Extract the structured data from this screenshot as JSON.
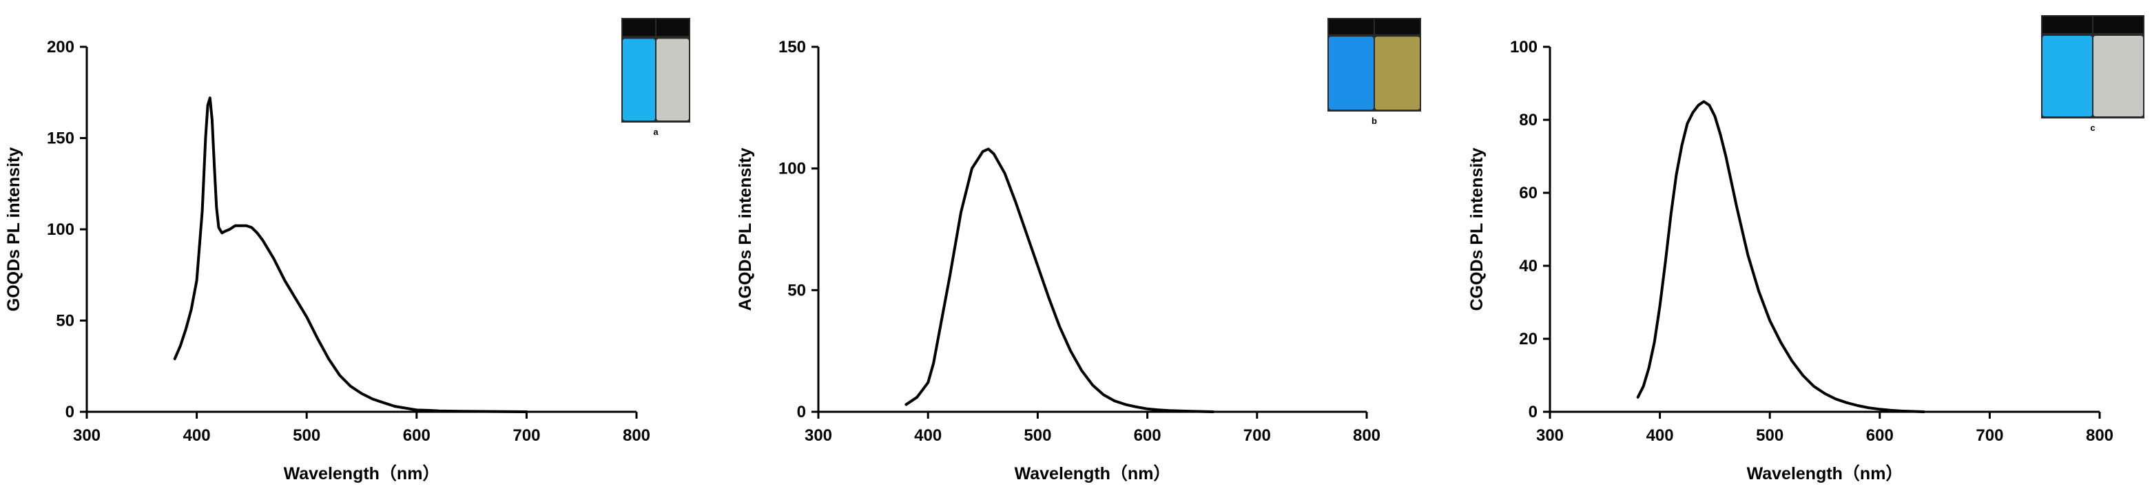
{
  "panels": [
    {
      "id": "a",
      "chart_data": {
        "type": "line",
        "xlabel": "Wavelength（nm）",
        "ylabel": "GOQDs PL intensity",
        "xlim": [
          300,
          800
        ],
        "ylim": [
          0,
          200
        ],
        "xticks": [
          300,
          400,
          500,
          600,
          700,
          800
        ],
        "yticks": [
          0,
          50,
          100,
          150,
          200
        ],
        "series": [
          {
            "x": [
              380,
              385,
              390,
              395,
              400,
              405,
              408,
              410,
              412,
              414,
              416,
              418,
              420,
              423,
              426,
              430,
              435,
              440,
              445,
              450,
              455,
              460,
              470,
              480,
              490,
              500,
              510,
              520,
              530,
              540,
              550,
              560,
              570,
              580,
              590,
              600,
              610,
              620,
              640,
              660,
              680,
              700
            ],
            "y": [
              29,
              36,
              45,
              56,
              72,
              110,
              150,
              168,
              172,
              160,
              135,
              112,
              101,
              98,
              99,
              100,
              102,
              102,
              102,
              101,
              98,
              94,
              84,
              72,
              62,
              52,
              40,
              29,
              20,
              14,
              10,
              7,
              5,
              3,
              2,
              1,
              0.8,
              0.5,
              0.3,
              0.2,
              0.1,
              0
            ]
          }
        ]
      },
      "inset": {
        "caption": "a",
        "vial_colors": [
          "#1fb0f0",
          "#c9c9c4"
        ]
      }
    },
    {
      "id": "b",
      "chart_data": {
        "type": "line",
        "xlabel": "Wavelength（nm）",
        "ylabel": "AGQDs PL intensity",
        "xlim": [
          300,
          800
        ],
        "ylim": [
          0,
          150
        ],
        "xticks": [
          300,
          400,
          500,
          600,
          700,
          800
        ],
        "yticks": [
          0,
          50,
          100,
          150
        ],
        "series": [
          {
            "x": [
              380,
              390,
              400,
              405,
              410,
              420,
              430,
              440,
              450,
              455,
              460,
              470,
              480,
              490,
              500,
              510,
              520,
              530,
              540,
              550,
              560,
              570,
              580,
              590,
              600,
              610,
              620,
              640,
              660
            ],
            "y": [
              3,
              6,
              12,
              20,
              32,
              56,
              82,
              100,
              107,
              108,
              106,
              98,
              86,
              73,
              60,
              47,
              35,
              25,
              17,
              11,
              7,
              4.5,
              3,
              2,
              1.2,
              0.8,
              0.5,
              0.2,
              0
            ]
          }
        ]
      },
      "inset": {
        "caption": "b",
        "vial_colors": [
          "#1c8fe8",
          "#a89a4a"
        ]
      }
    },
    {
      "id": "c",
      "chart_data": {
        "type": "line",
        "xlabel": "Wavelength（nm）",
        "ylabel": "CGQDs PL intensity",
        "xlim": [
          300,
          800
        ],
        "ylim": [
          0,
          100
        ],
        "xticks": [
          300,
          400,
          500,
          600,
          700,
          800
        ],
        "yticks": [
          0,
          20,
          40,
          60,
          80,
          100
        ],
        "series": [
          {
            "x": [
              380,
              385,
              390,
              395,
              400,
              405,
              410,
              415,
              420,
              425,
              430,
              435,
              440,
              445,
              450,
              455,
              460,
              470,
              480,
              490,
              500,
              510,
              520,
              530,
              540,
              550,
              560,
              570,
              580,
              590,
              600,
              610,
              620,
              640
            ],
            "y": [
              4,
              7,
              12,
              19,
              29,
              41,
              54,
              65,
              73,
              79,
              82,
              84,
              85,
              84,
              81,
              76,
              70,
              56,
              43,
              33,
              25,
              19,
              14,
              10,
              7,
              5,
              3.5,
              2.5,
              1.7,
              1.1,
              0.7,
              0.4,
              0.2,
              0
            ]
          }
        ]
      },
      "inset": {
        "caption": "c",
        "vial_colors": [
          "#1fb0f0",
          "#c9c9c4"
        ]
      }
    }
  ]
}
